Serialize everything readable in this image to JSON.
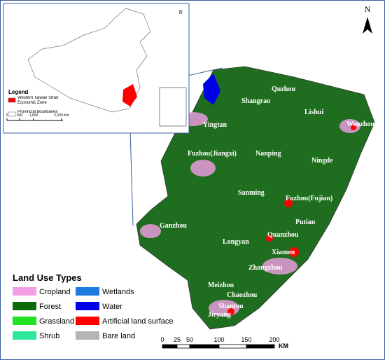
{
  "inset": {
    "north": "N",
    "legend_title": "Legend",
    "legend_items": [
      {
        "label": "Western Taiwan Strait Economic Zone",
        "color": "#ff0000"
      },
      {
        "label": "Provincial boundaries",
        "color": "#ffffff"
      }
    ],
    "scale_labels": [
      "0",
      "500",
      "1,000",
      "2,000 Km"
    ]
  },
  "map": {
    "north": "N",
    "cities": [
      "Quzhou",
      "Shangrao",
      "Lishui",
      "Wenzhou",
      "Yingtan",
      "Fuzhou(Jiangxi)",
      "Nanping",
      "Ningde",
      "Sanming",
      "Fuzhou(Fujian)",
      "Putian",
      "Ganzhou",
      "Quanzhou",
      "Longyan",
      "Xiamen",
      "Zhangzhou",
      "Meizhou",
      "Chaozhou",
      "Shantou",
      "Jieyang"
    ]
  },
  "land_use_legend": {
    "title": "Land Use Types",
    "items": [
      {
        "label": "Cropland",
        "color": "#f49ee8"
      },
      {
        "label": "Forest",
        "color": "#0b6b0b"
      },
      {
        "label": "Grassland",
        "color": "#22e022"
      },
      {
        "label": "Shrub",
        "color": "#2de89b"
      },
      {
        "label": "Wetlands",
        "color": "#1e7be0"
      },
      {
        "label": "Water",
        "color": "#0000e6"
      },
      {
        "label": "Artificial land surface",
        "color": "#ff0000"
      },
      {
        "label": "Bare land",
        "color": "#b4b4b4"
      }
    ]
  },
  "scale": {
    "labels": [
      "0",
      "25",
      "50",
      "100",
      "150",
      "200"
    ],
    "unit": "KM"
  }
}
